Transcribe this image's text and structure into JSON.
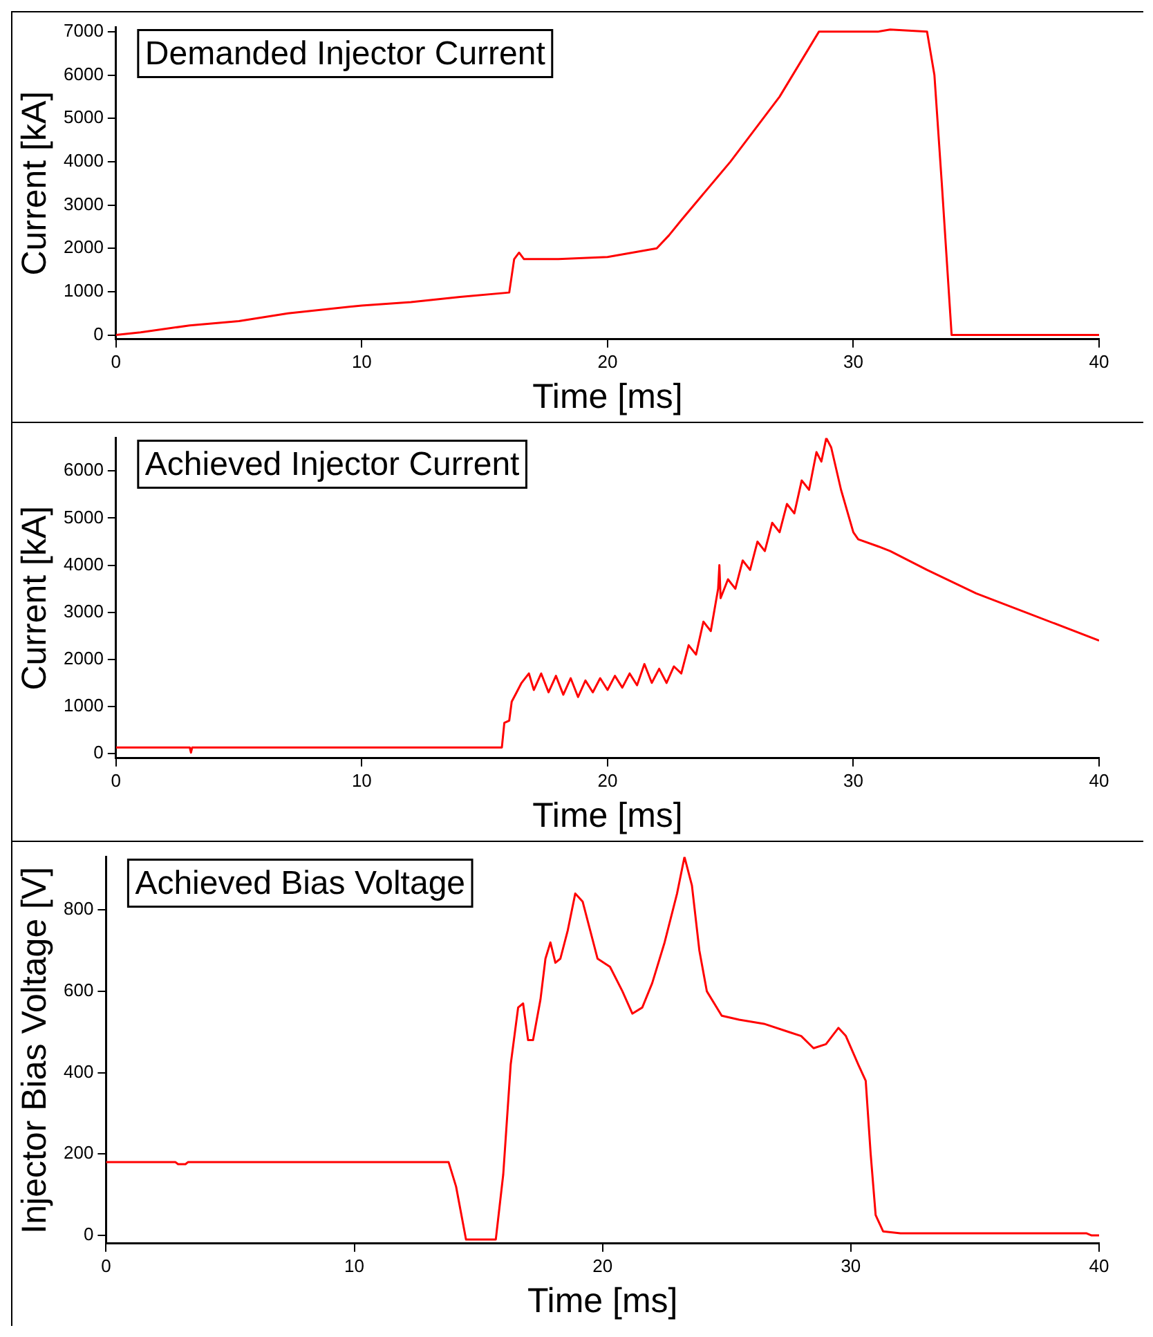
{
  "chart_data": [
    {
      "type": "line",
      "title": "Demanded Injector Current",
      "xlabel": "Time [ms]",
      "ylabel": "Current [kA]",
      "xlim": [
        0,
        40
      ],
      "xticks": [
        0,
        10,
        20,
        30,
        40
      ],
      "ylim": [
        -100,
        7100
      ],
      "yticks": [
        0,
        1000,
        2000,
        3000,
        4000,
        5000,
        6000,
        7000
      ],
      "series": [
        {
          "color": "#ff0000",
          "x": [
            0,
            1,
            3,
            5,
            7,
            10,
            12,
            14,
            16,
            16.2,
            16.4,
            16.6,
            18,
            20,
            22,
            22.5,
            23,
            25,
            27,
            28.6,
            31,
            31.5,
            33,
            33.3,
            33.6,
            34,
            36,
            40
          ],
          "values": [
            0,
            60,
            220,
            320,
            500,
            680,
            760,
            880,
            980,
            1750,
            1900,
            1750,
            1750,
            1800,
            2000,
            2300,
            2650,
            4000,
            5500,
            7000,
            7000,
            7050,
            7000,
            6000,
            3500,
            0,
            0,
            0
          ]
        }
      ]
    },
    {
      "type": "line",
      "title": "Achieved Injector Current",
      "xlabel": "Time [ms]",
      "ylabel": "Current [kA]",
      "xlim": [
        0,
        40
      ],
      "xticks": [
        0,
        10,
        20,
        30,
        40
      ],
      "ylim": [
        -100,
        6700
      ],
      "yticks": [
        0,
        1000,
        2000,
        3000,
        4000,
        5000,
        6000
      ],
      "series": [
        {
          "color": "#ff0000",
          "x": [
            0,
            3,
            3.05,
            3.1,
            15.7,
            15.8,
            16,
            16.1,
            16.3,
            16.5,
            16.8,
            17,
            17.3,
            17.6,
            17.9,
            18.2,
            18.5,
            18.8,
            19.1,
            19.4,
            19.7,
            20,
            20.3,
            20.6,
            20.9,
            21.2,
            21.5,
            21.8,
            22.1,
            22.4,
            22.7,
            23,
            23.3,
            23.6,
            23.9,
            24.2,
            24.5,
            24.55,
            24.6,
            24.9,
            25.2,
            25.5,
            25.8,
            26.1,
            26.4,
            26.7,
            27,
            27.3,
            27.6,
            27.9,
            28.2,
            28.5,
            28.7,
            28.9,
            29.1,
            29.5,
            30,
            30.2,
            31,
            31.5,
            33,
            35,
            37,
            40
          ],
          "values": [
            130,
            130,
            20,
            130,
            130,
            650,
            700,
            1100,
            1300,
            1500,
            1700,
            1350,
            1700,
            1300,
            1650,
            1250,
            1600,
            1200,
            1550,
            1300,
            1600,
            1350,
            1650,
            1400,
            1700,
            1450,
            1900,
            1500,
            1800,
            1500,
            1850,
            1700,
            2300,
            2100,
            2800,
            2600,
            3500,
            4000,
            3300,
            3700,
            3500,
            4100,
            3900,
            4500,
            4300,
            4900,
            4700,
            5300,
            5100,
            5800,
            5600,
            6400,
            6200,
            6700,
            6500,
            5600,
            4700,
            4550,
            4400,
            4300,
            3900,
            3400,
            3000,
            2400
          ]
        }
      ]
    },
    {
      "type": "line",
      "title": "Achieved Bias Voltage",
      "xlabel": "Time [ms]",
      "ylabel": "Injector Bias Voltage [V]",
      "xlim": [
        0,
        40
      ],
      "xticks": [
        0,
        10,
        20,
        30,
        40
      ],
      "ylim": [
        -20,
        930
      ],
      "yticks": [
        0,
        200,
        400,
        600,
        800
      ],
      "series": [
        {
          "color": "#ff0000",
          "x": [
            0,
            2.8,
            2.9,
            3.2,
            3.3,
            13.8,
            14.1,
            14.5,
            15.7,
            16,
            16.3,
            16.6,
            16.8,
            17,
            17.2,
            17.5,
            17.7,
            17.9,
            18.1,
            18.3,
            18.6,
            18.9,
            19.2,
            19.5,
            19.8,
            20.3,
            20.8,
            21.2,
            21.6,
            22,
            22.5,
            23,
            23.3,
            23.6,
            23.9,
            24.2,
            24.8,
            25.5,
            26.5,
            27.5,
            28,
            28.5,
            29,
            29.5,
            29.8,
            30.3,
            30.6,
            30.8,
            31,
            31.3,
            32,
            39.5,
            39.7,
            40
          ],
          "values": [
            180,
            180,
            175,
            175,
            180,
            180,
            120,
            -10,
            -10,
            150,
            420,
            560,
            570,
            480,
            480,
            580,
            680,
            720,
            670,
            680,
            750,
            840,
            820,
            750,
            680,
            660,
            600,
            545,
            560,
            620,
            720,
            840,
            930,
            860,
            700,
            600,
            540,
            530,
            520,
            500,
            490,
            460,
            470,
            510,
            490,
            420,
            380,
            200,
            50,
            10,
            5,
            5,
            0,
            0
          ]
        }
      ]
    }
  ]
}
